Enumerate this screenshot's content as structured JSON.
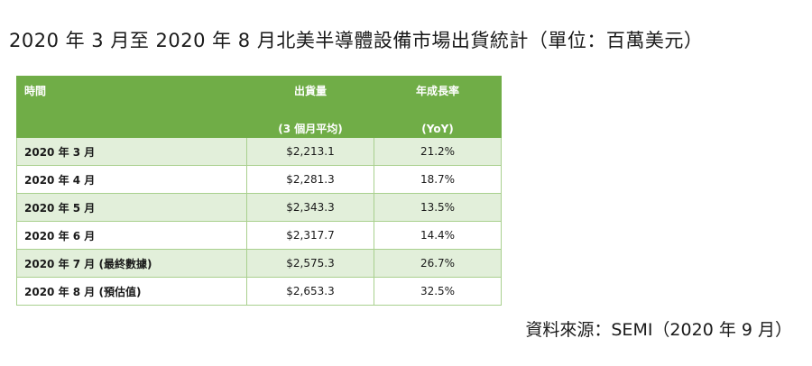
{
  "title": "2020 年 3 月至 2020 年 8 月北美半導體設備市場出貨統計（單位：百萬美元）",
  "table": {
    "headers": {
      "time": "時間",
      "shipments_line1": "出貨量",
      "shipments_line2": "(3 個月平均)",
      "growth_line1": "年成長率",
      "growth_line2": "(YoY)"
    },
    "rows": [
      {
        "time": "2020 年 3 月",
        "value": "$2,213.1",
        "yoy": "21.2%"
      },
      {
        "time": "2020 年 4 月",
        "value": "$2,281.3",
        "yoy": "18.7%"
      },
      {
        "time": "2020 年 5 月",
        "value": "$2,343.3",
        "yoy": "13.5%"
      },
      {
        "time": "2020 年 6 月",
        "value": "$2,317.7",
        "yoy": "14.4%"
      },
      {
        "time": "2020 年 7 月 (最終數據)",
        "value": "$2,575.3",
        "yoy": "26.7%"
      },
      {
        "time": "2020 年 8 月 (預估值)",
        "value": "$2,653.3",
        "yoy": "32.5%"
      }
    ]
  },
  "source": "資料來源：SEMI（2020 年 9 月）",
  "colors": {
    "header_bg": "#70ad47",
    "row_alt_bg": "#e2efda",
    "border": "#a9d08e"
  }
}
